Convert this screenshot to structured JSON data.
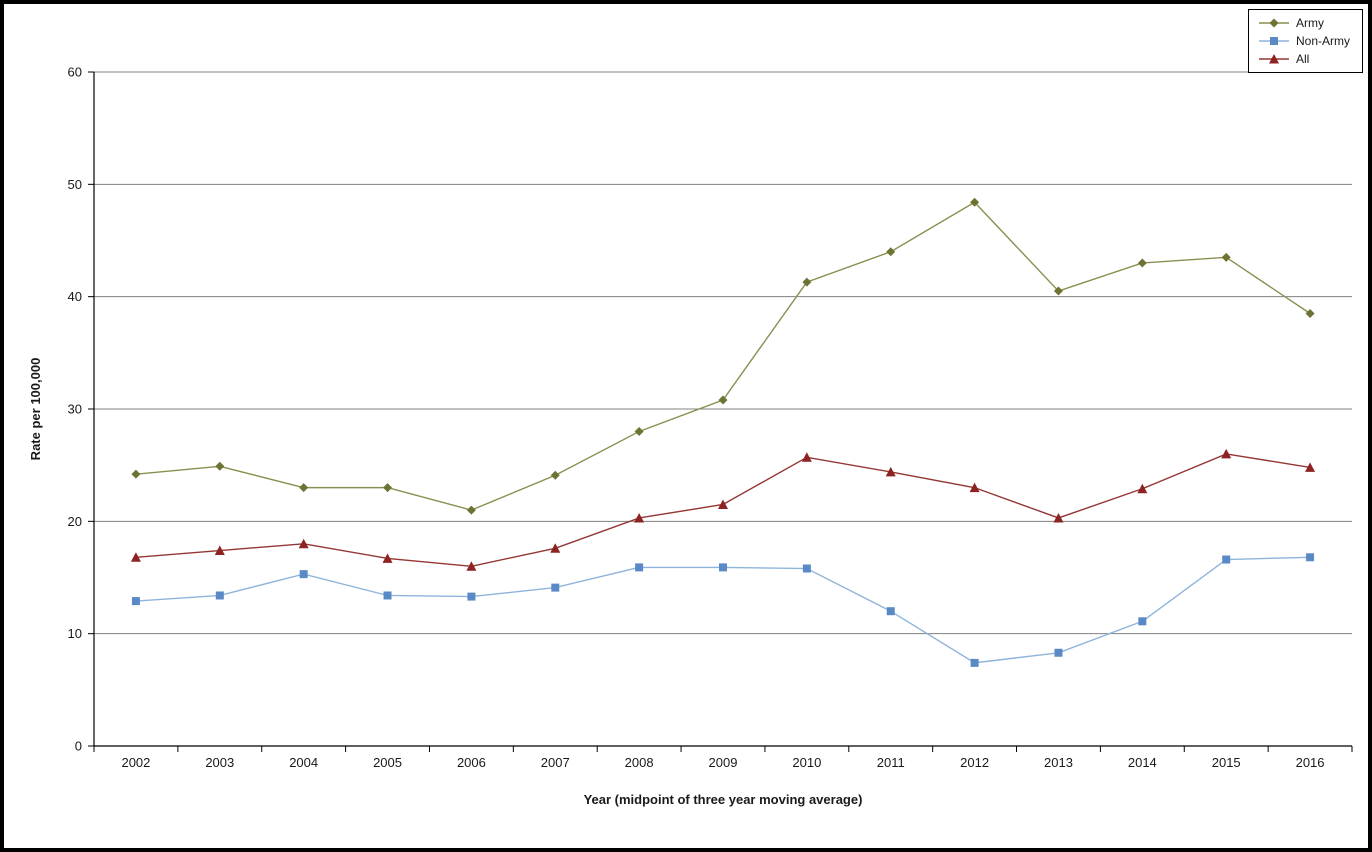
{
  "chart_data": {
    "type": "line",
    "title": "",
    "xlabel": "Year (midpoint of three year moving average)",
    "ylabel": "Rate per 100,000",
    "ylim": [
      0,
      60
    ],
    "yticks": [
      0,
      10,
      20,
      30,
      40,
      50,
      60
    ],
    "grid": true,
    "legend_position": "top-right",
    "categories": [
      "2002",
      "2003",
      "2004",
      "2005",
      "2006",
      "2007",
      "2008",
      "2009",
      "2010",
      "2011",
      "2012",
      "2013",
      "2014",
      "2015",
      "2016"
    ],
    "series": [
      {
        "name": "Army",
        "marker": "diamond",
        "color": "#6E7334",
        "line_color": "#8A8F50",
        "values": [
          24.2,
          24.9,
          23.0,
          23.0,
          21.0,
          24.1,
          28.0,
          30.8,
          41.3,
          44.0,
          48.4,
          40.5,
          43.0,
          43.5,
          38.5
        ]
      },
      {
        "name": "Non-Army",
        "marker": "square",
        "color": "#5A8AC6",
        "line_color": "#8FB4DC",
        "values": [
          12.9,
          13.4,
          15.3,
          13.4,
          13.3,
          14.1,
          15.9,
          15.9,
          15.8,
          12.0,
          7.4,
          8.3,
          11.1,
          16.6,
          16.8
        ]
      },
      {
        "name": "All",
        "marker": "triangle",
        "color": "#8E2323",
        "line_color": "#943634",
        "values": [
          16.8,
          17.4,
          18.0,
          16.7,
          16.0,
          17.6,
          20.3,
          21.5,
          25.7,
          24.4,
          23.0,
          20.3,
          22.9,
          26.0,
          24.8
        ]
      }
    ],
    "colors": {
      "gridline": "#808080",
      "axis": "#000000",
      "text": "#1a1a1a",
      "background": "#ffffff",
      "frame_border": "#000000"
    }
  }
}
